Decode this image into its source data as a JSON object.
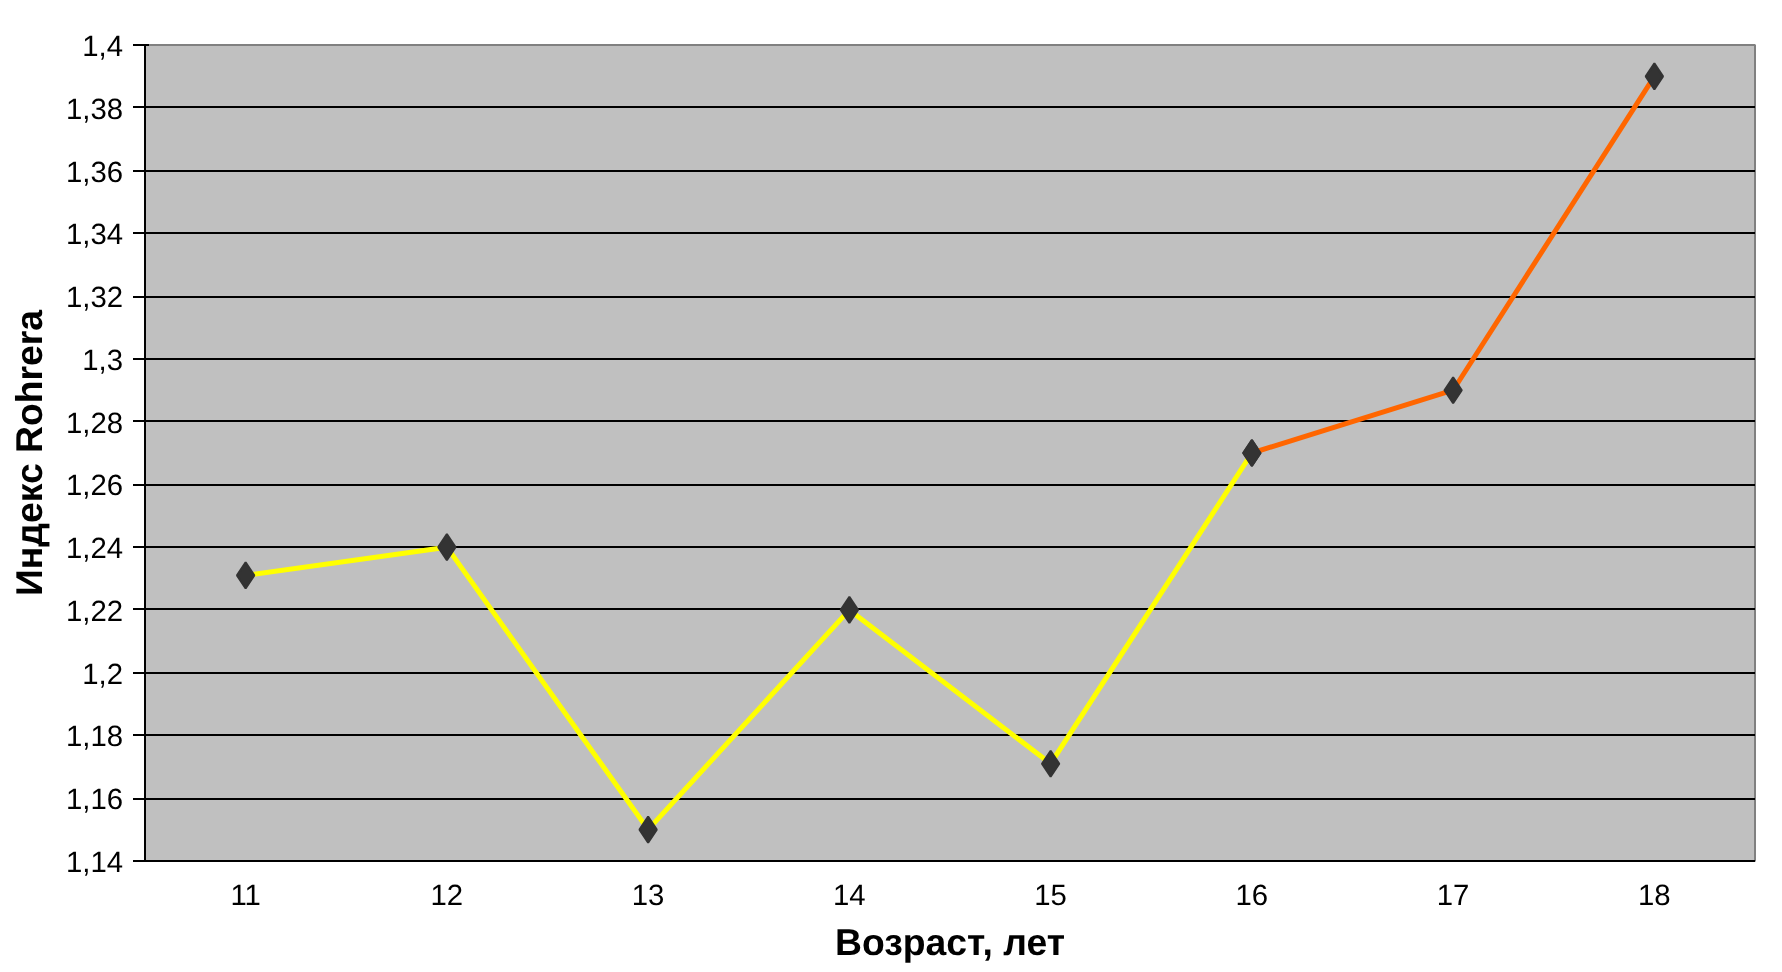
{
  "chart_data": {
    "type": "line",
    "xlabel": "Возраст, лет",
    "ylabel": "Индекс Rohrera",
    "categories": [
      "11",
      "12",
      "13",
      "14",
      "15",
      "16",
      "17",
      "18"
    ],
    "series": [
      {
        "color": "#ffff00",
        "values": [
          1.231,
          1.24,
          1.15,
          1.22,
          1.171,
          1.27,
          null,
          null
        ]
      },
      {
        "color": "#ff6600",
        "values": [
          null,
          null,
          null,
          null,
          null,
          1.27,
          1.29,
          1.39
        ]
      }
    ],
    "ylim": [
      1.14,
      1.4
    ],
    "yticks": [
      {
        "value": 1.14,
        "label": "1,14"
      },
      {
        "value": 1.16,
        "label": "1,16"
      },
      {
        "value": 1.18,
        "label": "1,18"
      },
      {
        "value": 1.2,
        "label": "1,2"
      },
      {
        "value": 1.22,
        "label": "1,22"
      },
      {
        "value": 1.24,
        "label": "1,24"
      },
      {
        "value": 1.26,
        "label": "1,26"
      },
      {
        "value": 1.28,
        "label": "1,28"
      },
      {
        "value": 1.3,
        "label": "1,3"
      },
      {
        "value": 1.32,
        "label": "1,32"
      },
      {
        "value": 1.34,
        "label": "1,34"
      },
      {
        "value": 1.36,
        "label": "1,36"
      },
      {
        "value": 1.38,
        "label": "1,38"
      },
      {
        "value": 1.4,
        "label": "1,4"
      }
    ],
    "grid": "y",
    "marker": "diamond",
    "line_style": "solid"
  }
}
